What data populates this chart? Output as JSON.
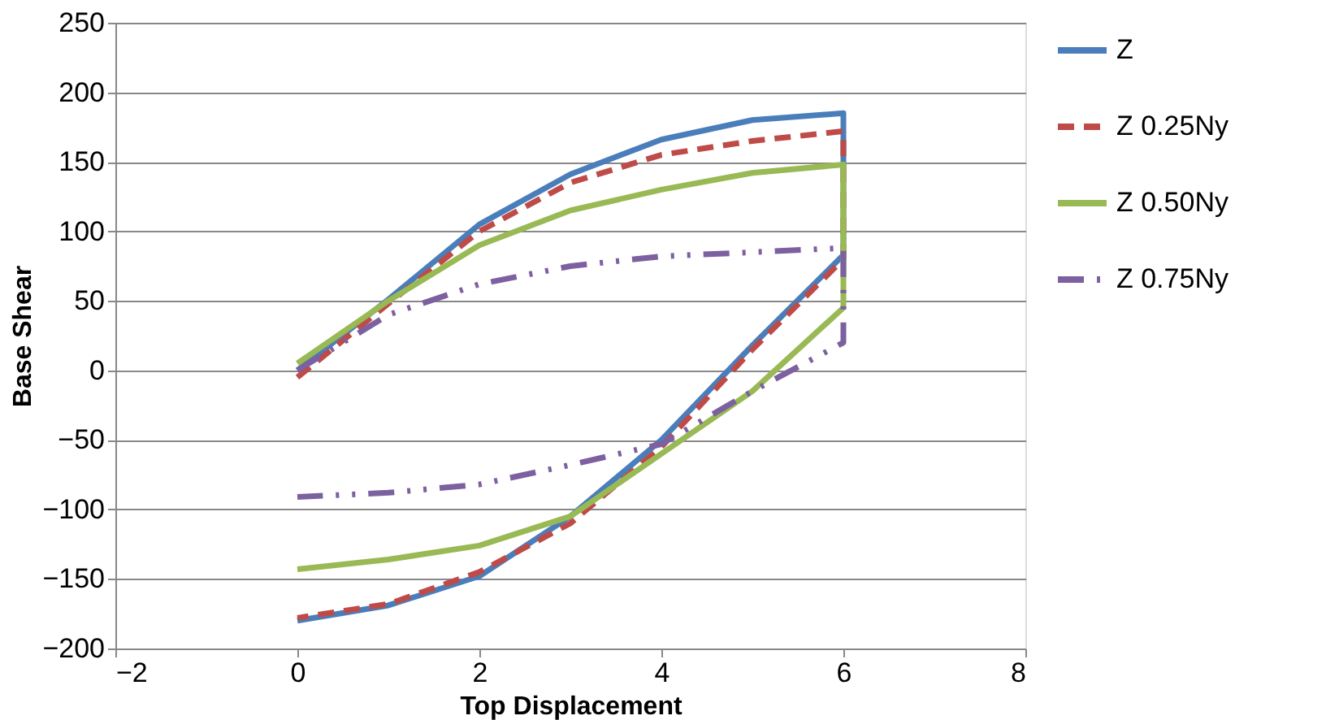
{
  "chart_data": {
    "type": "line",
    "xlabel": "Top Displacement",
    "ylabel": "Base Shear",
    "xlim": [
      -2,
      8
    ],
    "xticks": [
      -2,
      0,
      2,
      4,
      6,
      8
    ],
    "ylim": [
      -200,
      250
    ],
    "yticks": [
      -200,
      -150,
      -100,
      -50,
      0,
      50,
      100,
      150,
      200,
      250
    ],
    "grid": "y",
    "legend": "right",
    "series": [
      {
        "name": "Z",
        "color": "#4a7ebb",
        "line_style": "solid",
        "x": [
          0,
          1,
          2,
          3,
          4,
          5,
          6,
          6,
          5,
          4,
          3,
          2,
          1,
          0
        ],
        "values": [
          0,
          51,
          105,
          141,
          166,
          180,
          185,
          83,
          18,
          -50,
          -105,
          -148,
          -169,
          -180
        ]
      },
      {
        "name": "Z 0.25Ny",
        "color": "#be4b48",
        "line_style": "dashed",
        "x": [
          0,
          1,
          2,
          3,
          4,
          5,
          6,
          6,
          5,
          4,
          3,
          2,
          1,
          0
        ],
        "values": [
          -5,
          48,
          100,
          135,
          155,
          165,
          172,
          80,
          15,
          -55,
          -110,
          -145,
          -168,
          -178
        ]
      },
      {
        "name": "Z 0.50Ny",
        "color": "#98b954",
        "line_style": "solid",
        "x": [
          0,
          1,
          2,
          3,
          4,
          5,
          6,
          6,
          5,
          4,
          3,
          2,
          1,
          0
        ],
        "values": [
          5,
          50,
          90,
          115,
          130,
          142,
          148,
          45,
          -15,
          -60,
          -105,
          -126,
          -136,
          -143
        ]
      },
      {
        "name": "Z 0.75Ny",
        "color": "#7d60a0",
        "line_style": "dotted",
        "x": [
          0,
          1,
          2,
          3,
          4,
          5,
          6,
          6,
          5,
          4,
          3,
          2,
          1,
          0
        ],
        "values": [
          0,
          40,
          62,
          75,
          82,
          85,
          88,
          20,
          -15,
          -53,
          -68,
          -82,
          -88,
          -91
        ]
      }
    ]
  }
}
